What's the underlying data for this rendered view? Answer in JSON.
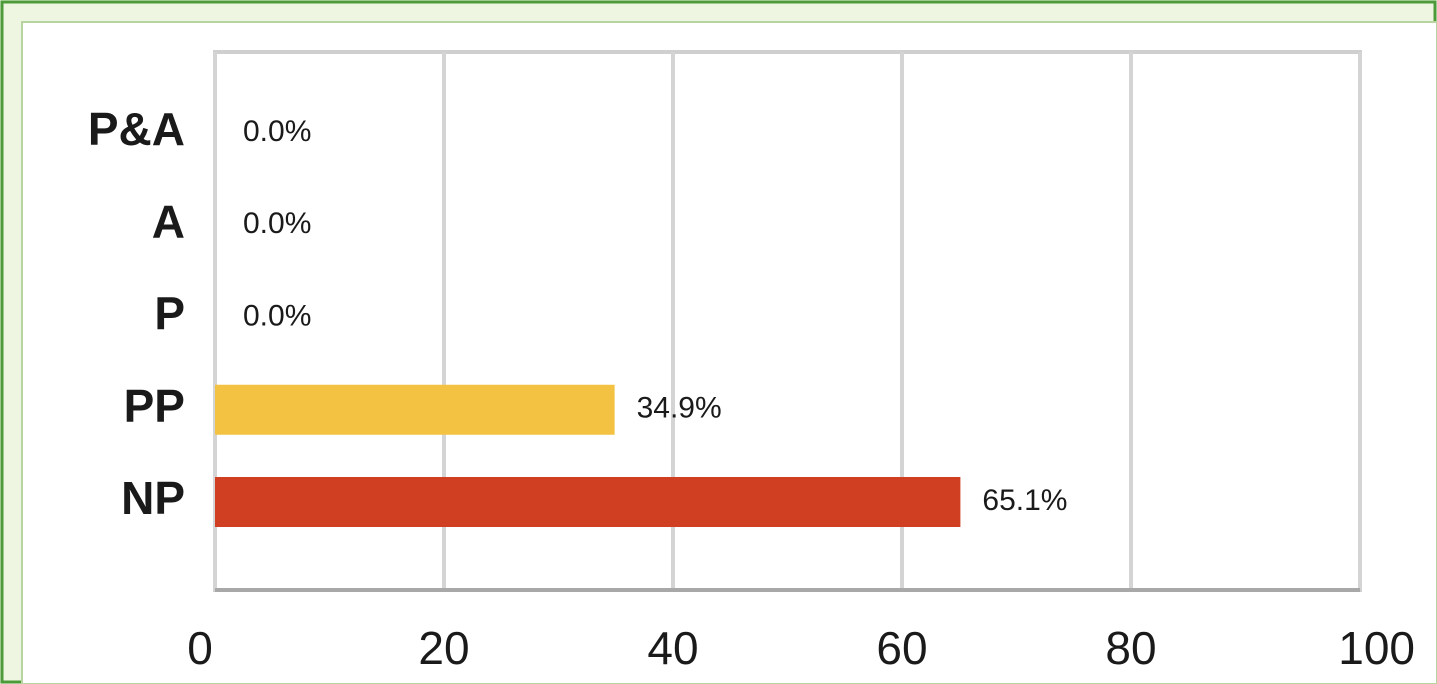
{
  "chart_data": {
    "type": "bar",
    "orientation": "horizontal",
    "categories": [
      "P&A",
      "A",
      "P",
      "PP",
      "NP"
    ],
    "values": [
      0,
      0,
      0,
      34.9,
      65.1
    ],
    "value_labels": [
      "0.0%",
      "0.0%",
      "0.0%",
      "34.9%",
      "65.1%"
    ],
    "colors": [
      null,
      null,
      null,
      "#f4c242",
      "#d03f22"
    ],
    "xlim": [
      0,
      100
    ],
    "xticks": [
      0,
      20,
      40,
      60,
      80,
      100
    ],
    "grid": true
  }
}
